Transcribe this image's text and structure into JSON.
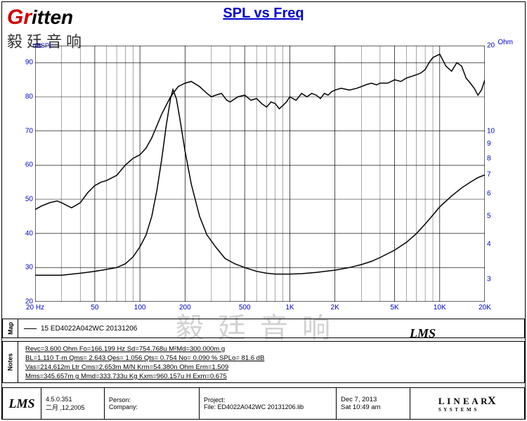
{
  "logo": {
    "red_part": "Gr",
    "black_part": "itten",
    "subtitle": "毅廷音响"
  },
  "chart": {
    "title": "SPL vs Freq",
    "type": "line",
    "x_axis": {
      "scale": "log",
      "min": 20,
      "max": 20000,
      "unit_label": "Hz",
      "ticks": [
        20,
        50,
        100,
        200,
        500,
        1000,
        2000,
        5000,
        10000,
        20000
      ],
      "tick_labels": [
        "20",
        "50",
        "100",
        "200",
        "500",
        "1K",
        "2K",
        "5K",
        "10K",
        "20K"
      ]
    },
    "y_left": {
      "title": "dBSPL",
      "min": 20,
      "max": 95,
      "ticks": [
        20,
        30,
        40,
        50,
        60,
        70,
        80,
        90
      ],
      "color": "#0000cc"
    },
    "y_right": {
      "title": "Ohm",
      "min": 2.5,
      "max": 20,
      "ticks": [
        3,
        4,
        5,
        6,
        7,
        8,
        9,
        10,
        20
      ],
      "color": "#0000cc"
    },
    "grid_color": "#000000",
    "grid_width": 0.5,
    "background": "#ffffff",
    "series": [
      {
        "axis": "left",
        "color": "#000000",
        "width": 1.5,
        "points": [
          [
            20,
            47
          ],
          [
            22,
            48
          ],
          [
            25,
            49
          ],
          [
            28,
            49.5
          ],
          [
            30,
            49
          ],
          [
            35,
            47.5
          ],
          [
            40,
            49
          ],
          [
            45,
            52
          ],
          [
            50,
            54
          ],
          [
            55,
            55
          ],
          [
            60,
            55.5
          ],
          [
            70,
            57
          ],
          [
            80,
            60
          ],
          [
            90,
            62
          ],
          [
            100,
            63
          ],
          [
            110,
            65
          ],
          [
            120,
            68
          ],
          [
            140,
            75
          ],
          [
            160,
            80
          ],
          [
            180,
            83
          ],
          [
            200,
            84
          ],
          [
            220,
            84.5
          ],
          [
            250,
            83
          ],
          [
            280,
            81
          ],
          [
            300,
            80
          ],
          [
            320,
            80.5
          ],
          [
            350,
            81
          ],
          [
            380,
            79
          ],
          [
            400,
            78.5
          ],
          [
            450,
            80
          ],
          [
            500,
            80.5
          ],
          [
            550,
            79
          ],
          [
            600,
            79.5
          ],
          [
            650,
            78
          ],
          [
            700,
            77
          ],
          [
            750,
            78.5
          ],
          [
            800,
            78
          ],
          [
            850,
            76.5
          ],
          [
            900,
            77.5
          ],
          [
            950,
            78.5
          ],
          [
            1000,
            80
          ],
          [
            1100,
            79
          ],
          [
            1200,
            81
          ],
          [
            1300,
            80
          ],
          [
            1400,
            81
          ],
          [
            1500,
            80.5
          ],
          [
            1600,
            79.5
          ],
          [
            1700,
            81
          ],
          [
            1800,
            80.5
          ],
          [
            1900,
            81.5
          ],
          [
            2000,
            82
          ],
          [
            2200,
            82.5
          ],
          [
            2500,
            82
          ],
          [
            2800,
            82.5
          ],
          [
            3000,
            83
          ],
          [
            3200,
            83.5
          ],
          [
            3500,
            84
          ],
          [
            3800,
            83.5
          ],
          [
            4000,
            84
          ],
          [
            4500,
            84
          ],
          [
            5000,
            85
          ],
          [
            5500,
            84.5
          ],
          [
            6000,
            85.5
          ],
          [
            6500,
            86
          ],
          [
            7000,
            86.5
          ],
          [
            7500,
            87
          ],
          [
            8000,
            88
          ],
          [
            8500,
            90
          ],
          [
            9000,
            91.5
          ],
          [
            9500,
            92
          ],
          [
            10000,
            92.5
          ],
          [
            11000,
            89
          ],
          [
            12000,
            87.5
          ],
          [
            13000,
            90
          ],
          [
            14000,
            89
          ],
          [
            15000,
            85.5
          ],
          [
            16000,
            84
          ],
          [
            17000,
            82.5
          ],
          [
            18000,
            80.5
          ],
          [
            19000,
            82
          ],
          [
            20000,
            85
          ]
        ]
      },
      {
        "axis": "right",
        "color": "#000000",
        "width": 1.5,
        "points": [
          [
            20,
            3.1
          ],
          [
            30,
            3.1
          ],
          [
            40,
            3.15
          ],
          [
            50,
            3.2
          ],
          [
            60,
            3.25
          ],
          [
            70,
            3.3
          ],
          [
            80,
            3.4
          ],
          [
            90,
            3.6
          ],
          [
            100,
            3.9
          ],
          [
            110,
            4.3
          ],
          [
            120,
            5.0
          ],
          [
            130,
            6.2
          ],
          [
            140,
            8.0
          ],
          [
            150,
            10.5
          ],
          [
            160,
            13.0
          ],
          [
            166,
            14.0
          ],
          [
            175,
            13.0
          ],
          [
            185,
            11.0
          ],
          [
            200,
            8.5
          ],
          [
            220,
            6.5
          ],
          [
            250,
            5.0
          ],
          [
            280,
            4.3
          ],
          [
            320,
            3.9
          ],
          [
            370,
            3.55
          ],
          [
            430,
            3.4
          ],
          [
            500,
            3.3
          ],
          [
            600,
            3.2
          ],
          [
            700,
            3.15
          ],
          [
            800,
            3.13
          ],
          [
            1000,
            3.13
          ],
          [
            1200,
            3.14
          ],
          [
            1500,
            3.17
          ],
          [
            2000,
            3.23
          ],
          [
            2500,
            3.3
          ],
          [
            3000,
            3.38
          ],
          [
            3500,
            3.47
          ],
          [
            4000,
            3.58
          ],
          [
            5000,
            3.8
          ],
          [
            6000,
            4.05
          ],
          [
            7000,
            4.35
          ],
          [
            8000,
            4.7
          ],
          [
            9000,
            5.05
          ],
          [
            10000,
            5.4
          ],
          [
            12000,
            5.9
          ],
          [
            14000,
            6.3
          ],
          [
            16000,
            6.6
          ],
          [
            18000,
            6.85
          ],
          [
            20000,
            7.0
          ]
        ]
      }
    ],
    "watermark_text": "毅廷音响",
    "lms_label": "LMS"
  },
  "map": {
    "tab": "Map",
    "legend_id": "15",
    "legend_text": "ED4022A042WC   20131206"
  },
  "notes": {
    "tab": "Notes",
    "lines": [
      "Revc=3.600 Ohm  Fo=166.199 Hz  Sd=754.768u M²Md=300.000m g",
      "BL=1.110 T·m  Qms= 2.643  Qes= 1.056  Qts= 0.754  No= 0.090 %  SPLo= 81.6 dB",
      "Vas=214.612m Ltr  Cms=2.653m M/N  Krm=54.380n Ohm  Erm=1.509",
      "Mms=345.657m g  Mmd=333.733u Kg  Kxm=960.157u H  Exm=0.675"
    ]
  },
  "footer": {
    "lms": "LMS",
    "version": "4.5.0.351",
    "version_date": "二月 ,12,2005",
    "person_label": "Person:",
    "company_label": "Company:",
    "project_label": "Project:",
    "file_label": "File:",
    "file_value": "ED4022A042WC 20131206.lib",
    "date": "Dec  7, 2013",
    "time": "Sat 10:49 am",
    "brand_top": "L I N E A R",
    "brand_x": "X",
    "brand_bottom": "S Y S T E M S"
  }
}
